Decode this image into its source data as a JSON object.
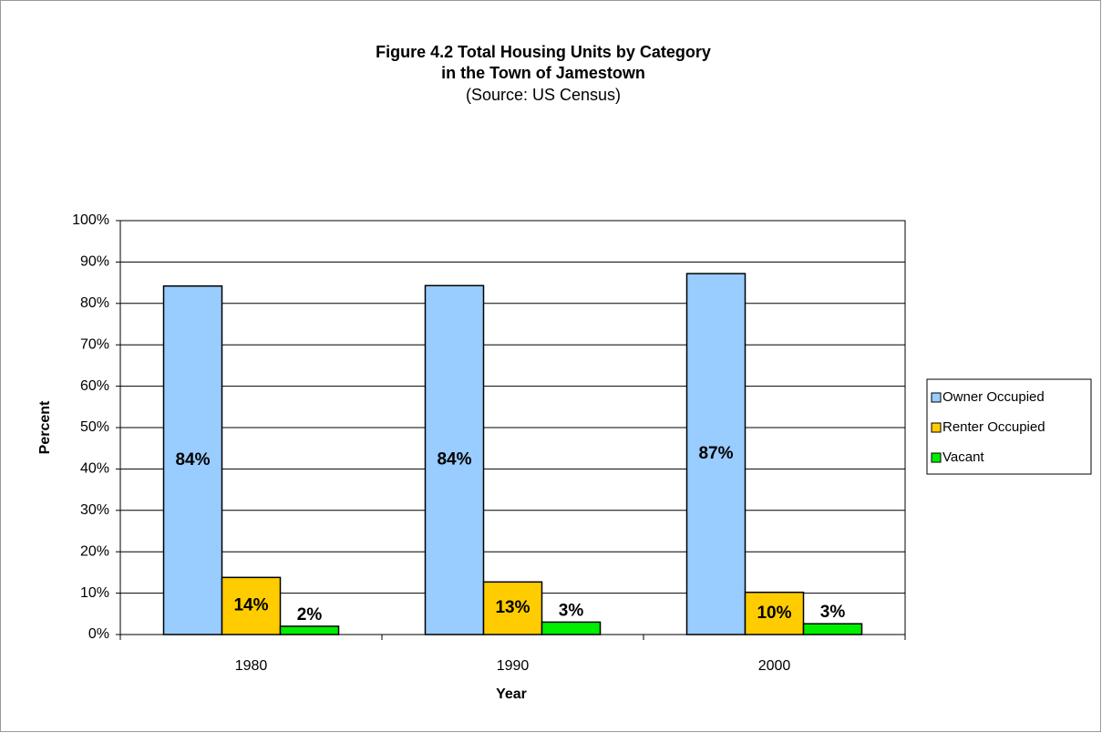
{
  "chart_data": {
    "type": "bar",
    "title": [
      "Figure 4.2 Total Housing Units by Category",
      "in the Town of Jamestown"
    ],
    "subtitle": "(Source: US Census)",
    "x_label": "Year",
    "y_label": "Percent",
    "categories": [
      "1980",
      "1990",
      "2000"
    ],
    "series": [
      {
        "name": "Owner Occupied",
        "color": "#99ccff",
        "values": [
          84.2,
          84.3,
          87.2
        ],
        "value_labels": [
          "84%",
          "84%",
          "87%"
        ]
      },
      {
        "name": "Renter Occupied",
        "color": "#ffcc00",
        "values": [
          13.8,
          12.7,
          10.2
        ],
        "value_labels": [
          "14%",
          "13%",
          "10%"
        ]
      },
      {
        "name": "Vacant",
        "color": "#00ee00",
        "values": [
          2.0,
          3.0,
          2.6
        ],
        "value_labels": [
          "2%",
          "3%",
          "3%"
        ]
      }
    ],
    "ylim": [
      0,
      100
    ],
    "yticks": [
      {
        "value": 0,
        "label": "0%"
      },
      {
        "value": 10,
        "label": "10%"
      },
      {
        "value": 20,
        "label": "20%"
      },
      {
        "value": 30,
        "label": "30%"
      },
      {
        "value": 40,
        "label": "40%"
      },
      {
        "value": 50,
        "label": "50%"
      },
      {
        "value": 60,
        "label": "60%"
      },
      {
        "value": 70,
        "label": "70%"
      },
      {
        "value": 80,
        "label": "80%"
      },
      {
        "value": 90,
        "label": "90%"
      },
      {
        "value": 100,
        "label": "100%"
      }
    ],
    "grid": true,
    "legend": "right"
  }
}
